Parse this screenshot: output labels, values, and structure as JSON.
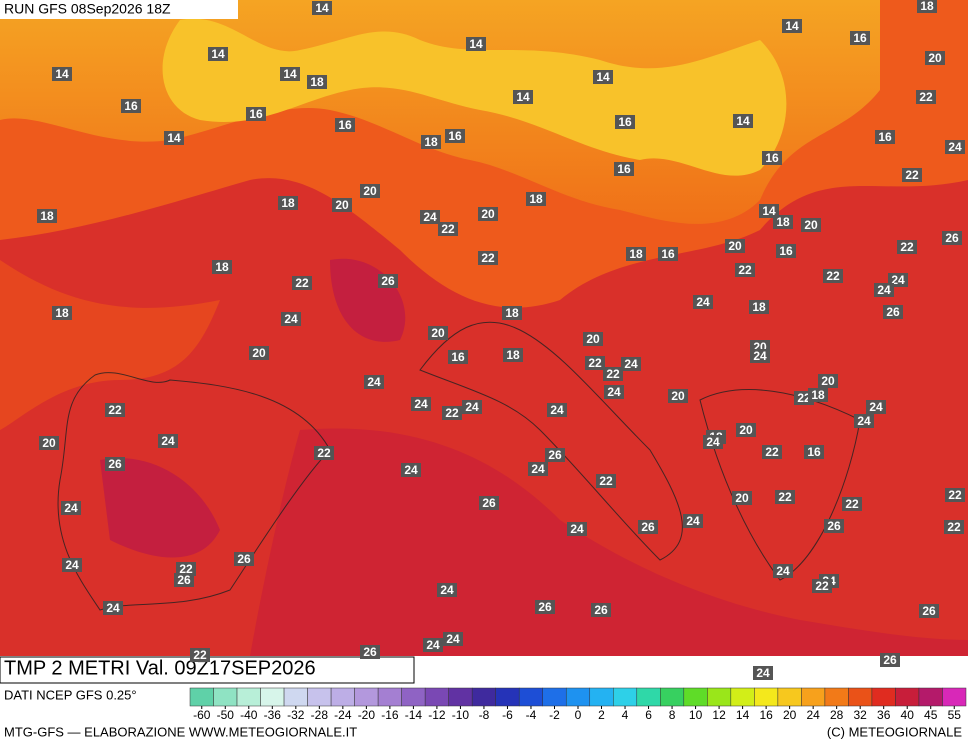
{
  "header": {
    "run": "RUN GFS 08Sep2026 18Z"
  },
  "map_labels": [
    14,
    18,
    14,
    14,
    14,
    14,
    18,
    14,
    14,
    16,
    20,
    16,
    16,
    14,
    14,
    16,
    16,
    18,
    16,
    14,
    16,
    22,
    24,
    16,
    16,
    22,
    18,
    18,
    20,
    20,
    18,
    20,
    24,
    22,
    14,
    18,
    20,
    20,
    18,
    16,
    16,
    22,
    22,
    26,
    18,
    22,
    26,
    22,
    22,
    24,
    24,
    24,
    18,
    26,
    18,
    24,
    18,
    20,
    20,
    20,
    16,
    18,
    22,
    24,
    22,
    20,
    24,
    24,
    24,
    20,
    22,
    18,
    24,
    24,
    24,
    22,
    24,
    24,
    20,
    22,
    20,
    24,
    22,
    20,
    18,
    24,
    22,
    16,
    26,
    26,
    24,
    24,
    22,
    26,
    22,
    20,
    22,
    22,
    24,
    24,
    26,
    24,
    26,
    22,
    26,
    24,
    22,
    26,
    24,
    24,
    22,
    24,
    24,
    26,
    26,
    26,
    24,
    24,
    22,
    26,
    24,
    26
  ],
  "footer": {
    "product": "TMP 2 METRI Val. 09Z17SEP2026",
    "source": "DATI NCEP GFS 0.25°",
    "credit": "MTG-GFS — ELABORAZIONE WWW.METEOGIORNALE.IT",
    "copyright": "(C) METEOGIORNALE"
  },
  "scale": {
    "ticks": [
      -60,
      -50,
      -40,
      -36,
      -32,
      -28,
      -24,
      -20,
      -16,
      -14,
      -12,
      -10,
      -8,
      -6,
      -4,
      -2,
      0,
      2,
      4,
      6,
      8,
      10,
      12,
      14,
      16,
      20,
      24,
      28,
      32,
      36,
      40,
      45,
      55
    ],
    "colors": [
      "#5fd1a8",
      "#8fe3c3",
      "#b8efd8",
      "#d7f5ea",
      "#cfd8f0",
      "#c7c2ec",
      "#bdaee6",
      "#b398dd",
      "#a47fd2",
      "#8f63c4",
      "#7a48b4",
      "#6132a3",
      "#3f2a9e",
      "#2533b8",
      "#1d4ed6",
      "#1e6fe8",
      "#1e92f0",
      "#24b2f2",
      "#2ed0e8",
      "#2fd8a8",
      "#37d060",
      "#5fdc28",
      "#9ae61a",
      "#d2ee18",
      "#f4e81c",
      "#f7c81e",
      "#f7a11c",
      "#f27a18",
      "#ea5218",
      "#e02c20",
      "#c81e3a",
      "#b41a6a",
      "#d828b8"
    ]
  }
}
